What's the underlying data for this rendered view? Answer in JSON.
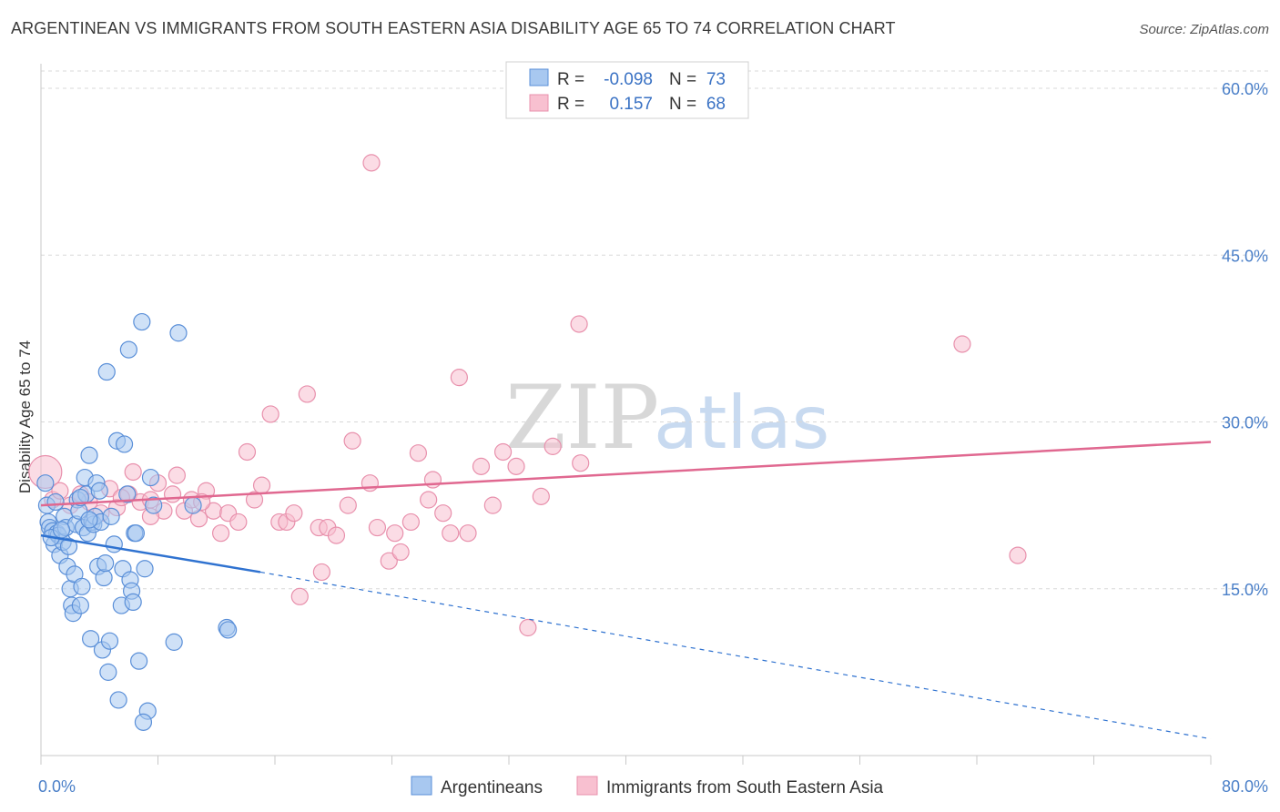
{
  "header": {
    "title": "ARGENTINEAN VS IMMIGRANTS FROM SOUTH EASTERN ASIA DISABILITY AGE 65 TO 74 CORRELATION CHART",
    "source": "Source: ZipAtlas.com"
  },
  "watermark": {
    "zip": "ZIP",
    "atlas": "atlas"
  },
  "legend_box": {
    "rows": [
      {
        "r_label": "R =",
        "r_value": "-0.098",
        "n_label": "N =",
        "n_value": "73"
      },
      {
        "r_label": "R =",
        "r_value": "0.157",
        "n_label": "N =",
        "n_value": "68"
      }
    ]
  },
  "colors": {
    "blue_fill": "#a8c8f0",
    "blue_stroke": "#5a8fd8",
    "blue_line": "#2f72d0",
    "pink_fill": "#f8c0d0",
    "pink_stroke": "#e890ac",
    "pink_line": "#e06890",
    "tick_text": "#4a7fc8",
    "grid": "#d8d8d8"
  },
  "chart_data": {
    "type": "scatter",
    "title": "ARGENTINEAN VS IMMIGRANTS FROM SOUTH EASTERN ASIA DISABILITY AGE 65 TO 74 CORRELATION CHART",
    "xlabel": "",
    "ylabel": "Disability Age 65 to 74",
    "xlim": [
      0,
      80
    ],
    "ylim": [
      0,
      60
    ],
    "x_tick_labels": [
      "0.0%",
      "80.0%"
    ],
    "y_ticks": [
      15,
      30,
      45,
      60
    ],
    "y_tick_labels": [
      "15.0%",
      "30.0%",
      "45.0%",
      "60.0%"
    ],
    "legend_position": "bottom-center",
    "series": [
      {
        "name": "Argentineans",
        "r": -0.098,
        "n": 73,
        "trend": {
          "solid": [
            [
              0,
              19.8
            ],
            [
              15,
              16.5
            ]
          ],
          "dashed": [
            [
              15,
              16.5
            ],
            [
              80,
              1.5
            ]
          ]
        },
        "points": [
          [
            0.3,
            24.5
          ],
          [
            0.4,
            22.5
          ],
          [
            0.5,
            21.0
          ],
          [
            0.6,
            20.5
          ],
          [
            0.8,
            20.2
          ],
          [
            0.9,
            19.0
          ],
          [
            1.0,
            22.8
          ],
          [
            1.1,
            20.0
          ],
          [
            1.2,
            19.8
          ],
          [
            1.3,
            18.0
          ],
          [
            1.5,
            19.2
          ],
          [
            1.6,
            21.5
          ],
          [
            1.7,
            20.5
          ],
          [
            1.8,
            17.0
          ],
          [
            1.9,
            18.8
          ],
          [
            2.0,
            15.0
          ],
          [
            2.1,
            13.5
          ],
          [
            2.2,
            12.8
          ],
          [
            2.3,
            16.3
          ],
          [
            2.4,
            20.8
          ],
          [
            2.5,
            23.0
          ],
          [
            2.6,
            22.0
          ],
          [
            2.7,
            13.5
          ],
          [
            2.8,
            15.2
          ],
          [
            2.9,
            20.5
          ],
          [
            3.0,
            25.0
          ],
          [
            3.1,
            23.5
          ],
          [
            3.2,
            20.0
          ],
          [
            3.3,
            27.0
          ],
          [
            3.4,
            10.5
          ],
          [
            3.5,
            21.0
          ],
          [
            3.6,
            20.8
          ],
          [
            3.7,
            21.5
          ],
          [
            3.8,
            24.5
          ],
          [
            3.9,
            17.0
          ],
          [
            4.0,
            23.8
          ],
          [
            4.1,
            21.0
          ],
          [
            4.2,
            9.5
          ],
          [
            4.3,
            16.0
          ],
          [
            4.4,
            17.3
          ],
          [
            4.5,
            34.5
          ],
          [
            4.6,
            7.5
          ],
          [
            4.7,
            10.3
          ],
          [
            4.8,
            21.5
          ],
          [
            5.0,
            19.0
          ],
          [
            5.2,
            28.3
          ],
          [
            5.3,
            5.0
          ],
          [
            5.5,
            13.5
          ],
          [
            5.6,
            16.8
          ],
          [
            5.7,
            28.0
          ],
          [
            5.9,
            23.5
          ],
          [
            6.0,
            36.5
          ],
          [
            6.1,
            15.8
          ],
          [
            6.2,
            14.8
          ],
          [
            6.3,
            13.8
          ],
          [
            6.4,
            20.0
          ],
          [
            6.5,
            20.0
          ],
          [
            6.7,
            8.5
          ],
          [
            6.9,
            39.0
          ],
          [
            7.1,
            16.8
          ],
          [
            7.3,
            4.0
          ],
          [
            7.5,
            25.0
          ],
          [
            7.7,
            22.5
          ],
          [
            7.0,
            3.0
          ],
          [
            9.1,
            10.2
          ],
          [
            9.4,
            38.0
          ],
          [
            10.4,
            22.5
          ],
          [
            12.7,
            11.5
          ],
          [
            12.8,
            11.3
          ],
          [
            0.7,
            19.6
          ],
          [
            1.4,
            20.3
          ],
          [
            3.3,
            21.2
          ],
          [
            2.7,
            23.2
          ]
        ]
      },
      {
        "name": "Immigrants from South Eastern Asia",
        "r": 0.157,
        "n": 68,
        "trend": {
          "solid": [
            [
              0,
              22.5
            ],
            [
              80,
              28.2
            ]
          ]
        },
        "points": [
          [
            0.3,
            25.5
          ],
          [
            0.8,
            23.0
          ],
          [
            1.3,
            23.8
          ],
          [
            2.0,
            22.5
          ],
          [
            2.7,
            23.5
          ],
          [
            3.3,
            22.8
          ],
          [
            4.1,
            21.8
          ],
          [
            4.7,
            24.0
          ],
          [
            5.2,
            22.3
          ],
          [
            6.0,
            23.5
          ],
          [
            6.3,
            25.5
          ],
          [
            6.8,
            22.8
          ],
          [
            7.5,
            23.0
          ],
          [
            8.0,
            24.5
          ],
          [
            8.4,
            22.0
          ],
          [
            9.3,
            25.2
          ],
          [
            9.8,
            22.0
          ],
          [
            10.3,
            23.0
          ],
          [
            10.8,
            21.3
          ],
          [
            11.3,
            23.8
          ],
          [
            11.8,
            22.0
          ],
          [
            12.3,
            20.0
          ],
          [
            12.8,
            21.8
          ],
          [
            13.5,
            21.0
          ],
          [
            14.1,
            27.3
          ],
          [
            14.6,
            23.0
          ],
          [
            15.1,
            24.3
          ],
          [
            15.7,
            30.7
          ],
          [
            16.3,
            21.0
          ],
          [
            16.8,
            21.0
          ],
          [
            17.3,
            21.8
          ],
          [
            17.7,
            14.3
          ],
          [
            18.2,
            32.5
          ],
          [
            19.0,
            20.5
          ],
          [
            19.2,
            16.5
          ],
          [
            19.6,
            20.5
          ],
          [
            20.2,
            19.8
          ],
          [
            21.0,
            22.5
          ],
          [
            21.3,
            28.3
          ],
          [
            22.5,
            24.5
          ],
          [
            23.0,
            20.5
          ],
          [
            23.8,
            17.5
          ],
          [
            24.2,
            20.0
          ],
          [
            24.6,
            18.3
          ],
          [
            25.3,
            21.0
          ],
          [
            25.8,
            27.2
          ],
          [
            26.5,
            23.0
          ],
          [
            26.8,
            24.8
          ],
          [
            27.5,
            21.8
          ],
          [
            28.0,
            20.0
          ],
          [
            28.6,
            34.0
          ],
          [
            29.2,
            20.0
          ],
          [
            30.1,
            26.0
          ],
          [
            30.9,
            22.5
          ],
          [
            31.6,
            27.3
          ],
          [
            32.5,
            26.0
          ],
          [
            33.3,
            11.5
          ],
          [
            34.2,
            23.3
          ],
          [
            35.0,
            27.8
          ],
          [
            36.8,
            38.8
          ],
          [
            36.9,
            26.3
          ],
          [
            22.6,
            53.3
          ],
          [
            63.0,
            37.0
          ],
          [
            66.8,
            18.0
          ],
          [
            9.0,
            23.5
          ],
          [
            7.5,
            21.5
          ],
          [
            11.0,
            22.8
          ],
          [
            5.5,
            23.2
          ]
        ]
      }
    ]
  }
}
